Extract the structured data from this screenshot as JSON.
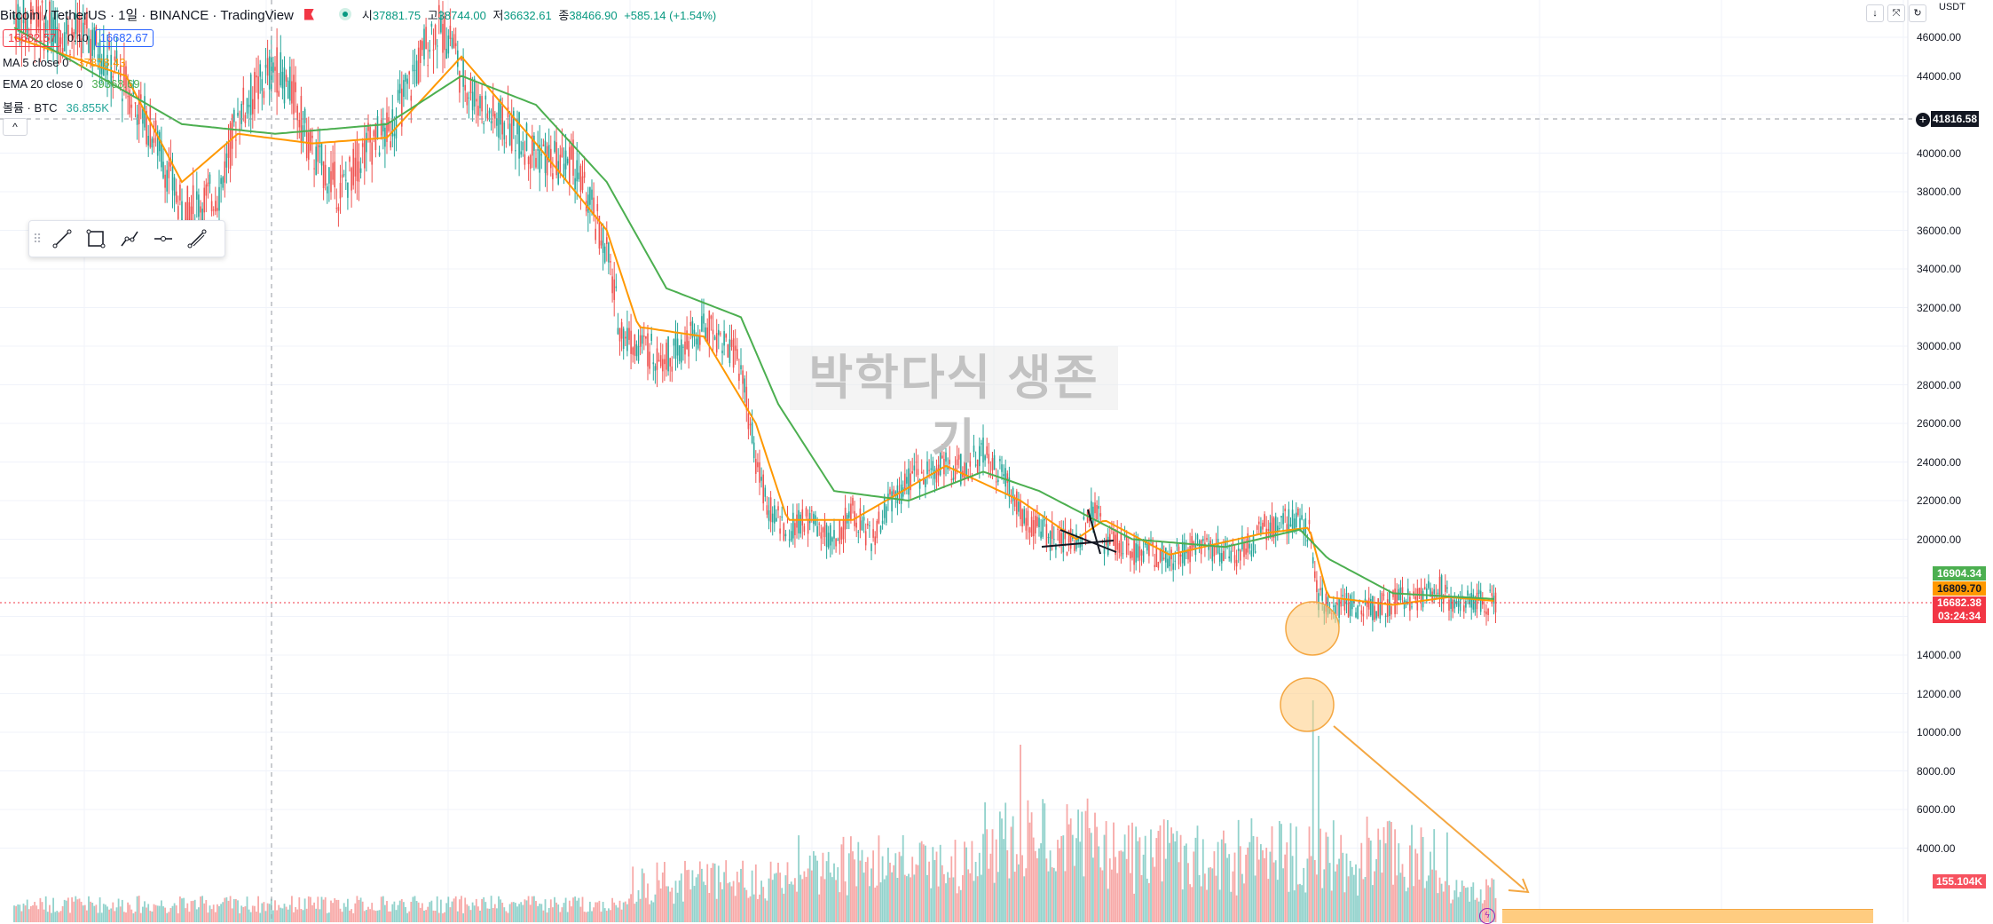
{
  "header": {
    "symbol": "Bitcoin / TetherUS · 1일 · BINANCE · TradingView",
    "ohlc": {
      "open_label": "시",
      "open": "37881.75",
      "high_label": "고",
      "high": "38744.00",
      "low_label": "저",
      "low": "36632.61",
      "close_label": "종",
      "close": "38466.90",
      "change": "+585.14 (+1.54%)"
    }
  },
  "trade": {
    "sell": "16682.57",
    "spread": "0.10",
    "buy": "16682.67"
  },
  "indicators": [
    {
      "label": "MA 5 close 0",
      "value": "37878.43",
      "color": "#ff9800"
    },
    {
      "label": "EMA 20 close 0",
      "value": "39368.69",
      "color": "#4caf50"
    },
    {
      "label": "볼륨 · BTC",
      "value": "36.855K",
      "color": "#26a69a"
    }
  ],
  "collapse_icon": "chevron-up-icon",
  "toolbar": {
    "tools": [
      "trend-line-icon",
      "rectangle-icon",
      "path-icon",
      "horizontal-ray-icon",
      "fib-icon"
    ]
  },
  "watermark": "박학다식 생존기",
  "currency": "USDT",
  "crosshair_price": "41816.58",
  "price_tags": {
    "ema20": "16904.34",
    "ma5": "16809.70",
    "last": "16682.38",
    "countdown": "03:24:34",
    "volume": "155.104K"
  },
  "axis_labels": [
    "46000.00",
    "44000.00",
    "40000.00",
    "38000.00",
    "36000.00",
    "34000.00",
    "32000.00",
    "30000.00",
    "28000.00",
    "26000.00",
    "24000.00",
    "22000.00",
    "20000.00",
    "14000.00",
    "12000.00",
    "10000.00",
    "8000.00",
    "6000.00",
    "4000.00"
  ],
  "colors": {
    "up": "#26a69a",
    "down": "#ef5350",
    "ma5": "#ff9800",
    "ema20": "#4caf50",
    "grid": "#f0f3fa",
    "highlight": "#f4a742"
  },
  "chart_data": {
    "type": "candlestick",
    "title": "",
    "price_axis_range": [
      14000,
      46000
    ],
    "grid": true,
    "close_path": [
      [
        0,
        47000
      ],
      [
        40,
        46000
      ],
      [
        60,
        43500
      ],
      [
        75,
        41000
      ],
      [
        90,
        37000
      ],
      [
        110,
        38000
      ],
      [
        120,
        42000
      ],
      [
        140,
        44500
      ],
      [
        150,
        43000
      ],
      [
        160,
        40000
      ],
      [
        175,
        38000
      ],
      [
        190,
        40500
      ],
      [
        200,
        41000
      ],
      [
        210,
        43000
      ],
      [
        225,
        46500
      ],
      [
        235,
        46000
      ],
      [
        240,
        44000
      ],
      [
        255,
        42000
      ],
      [
        270,
        41000
      ],
      [
        280,
        40000
      ],
      [
        290,
        39500
      ],
      [
        300,
        39500
      ],
      [
        310,
        37000
      ],
      [
        318,
        35000
      ],
      [
        325,
        31000
      ],
      [
        335,
        30000
      ],
      [
        350,
        29500
      ],
      [
        360,
        30000
      ],
      [
        370,
        31000
      ],
      [
        380,
        30500
      ],
      [
        390,
        29000
      ],
      [
        398,
        24000
      ],
      [
        405,
        21500
      ],
      [
        415,
        20500
      ],
      [
        425,
        21000
      ],
      [
        440,
        20000
      ],
      [
        450,
        21500
      ],
      [
        460,
        20000
      ],
      [
        470,
        22000
      ],
      [
        480,
        23000
      ],
      [
        490,
        23500
      ],
      [
        500,
        24000
      ],
      [
        510,
        23500
      ],
      [
        520,
        24500
      ],
      [
        530,
        23500
      ],
      [
        540,
        21500
      ],
      [
        550,
        20500
      ],
      [
        560,
        19800
      ],
      [
        570,
        20000
      ],
      [
        575,
        20500
      ],
      [
        580,
        21800
      ],
      [
        585,
        20000
      ],
      [
        595,
        19500
      ],
      [
        610,
        19300
      ],
      [
        620,
        19000
      ],
      [
        630,
        19500
      ],
      [
        640,
        19800
      ],
      [
        650,
        19200
      ],
      [
        660,
        19400
      ],
      [
        670,
        20500
      ],
      [
        680,
        21000
      ],
      [
        690,
        20800
      ],
      [
        695,
        20500
      ],
      [
        700,
        17000
      ],
      [
        705,
        16500
      ],
      [
        715,
        16600
      ],
      [
        725,
        16300
      ],
      [
        735,
        16600
      ],
      [
        745,
        16900
      ],
      [
        755,
        16900
      ],
      [
        760,
        17200
      ],
      [
        765,
        17600
      ],
      [
        770,
        16900
      ],
      [
        780,
        16800
      ],
      [
        790,
        16700
      ],
      [
        795,
        16682
      ]
    ],
    "ma5": [
      [
        0,
        46000
      ],
      [
        60,
        44000
      ],
      [
        90,
        38500
      ],
      [
        120,
        41000
      ],
      [
        160,
        40500
      ],
      [
        200,
        40800
      ],
      [
        240,
        45000
      ],
      [
        280,
        40500
      ],
      [
        318,
        36000
      ],
      [
        335,
        31000
      ],
      [
        370,
        30500
      ],
      [
        398,
        26000
      ],
      [
        415,
        21000
      ],
      [
        450,
        21000
      ],
      [
        500,
        23800
      ],
      [
        540,
        22000
      ],
      [
        570,
        20000
      ],
      [
        585,
        21000
      ],
      [
        620,
        19200
      ],
      [
        670,
        20300
      ],
      [
        695,
        20600
      ],
      [
        705,
        17000
      ],
      [
        740,
        16600
      ],
      [
        770,
        17000
      ],
      [
        795,
        16800
      ]
    ],
    "ema20": [
      [
        0,
        46500
      ],
      [
        90,
        41500
      ],
      [
        140,
        41000
      ],
      [
        200,
        41500
      ],
      [
        240,
        44000
      ],
      [
        280,
        42500
      ],
      [
        318,
        38500
      ],
      [
        350,
        33000
      ],
      [
        390,
        31500
      ],
      [
        410,
        27000
      ],
      [
        440,
        22500
      ],
      [
        480,
        22000
      ],
      [
        520,
        23500
      ],
      [
        550,
        22500
      ],
      [
        600,
        20000
      ],
      [
        650,
        19600
      ],
      [
        690,
        20500
      ],
      [
        705,
        19000
      ],
      [
        740,
        17200
      ],
      [
        795,
        16900
      ]
    ],
    "volume_peak_value": 12000,
    "annotations": [
      "orange-circle-low",
      "orange-circle-volume-peak",
      "orange-arrow-down-right"
    ]
  }
}
